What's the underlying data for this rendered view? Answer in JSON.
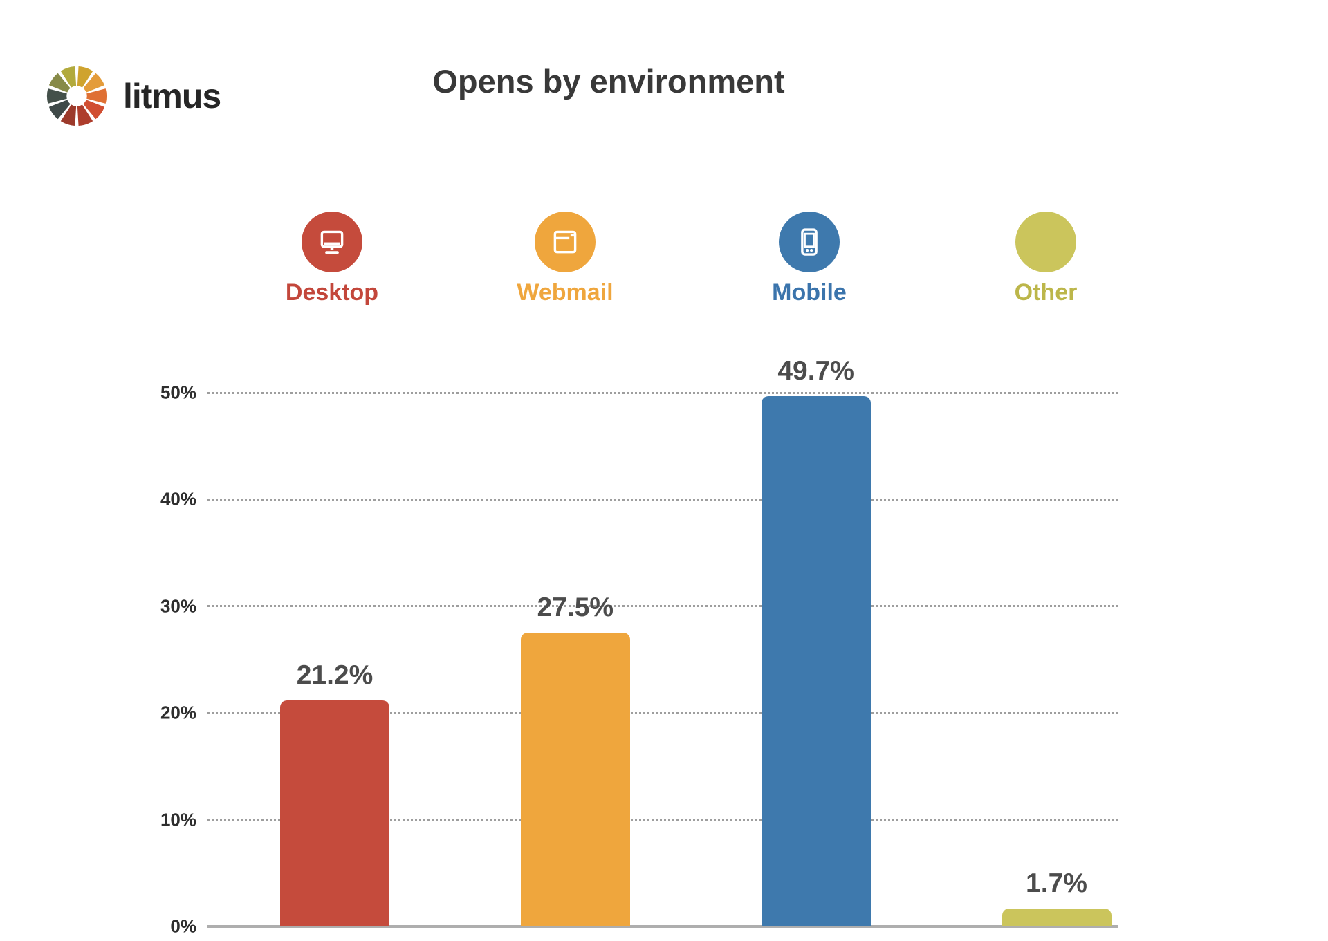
{
  "logo": {
    "brand": "litmus",
    "text_color": "#262626",
    "wheel_colors": [
      "#cfa32e",
      "#e49c3a",
      "#df7034",
      "#d14e31",
      "#ae3d2c",
      "#9c3a2b",
      "#3f4a49",
      "#44504a",
      "#878a48",
      "#b2aa3d"
    ]
  },
  "chart_data": {
    "type": "bar",
    "title": "Opens by environment",
    "categories": [
      "Desktop",
      "Webmail",
      "Mobile",
      "Other"
    ],
    "values": [
      21.2,
      27.5,
      49.7,
      1.7
    ],
    "value_labels": [
      "21.2%",
      "27.5%",
      "49.7%",
      "1.7%"
    ],
    "colors": [
      "#c54b3c",
      "#efa63d",
      "#3e79ad",
      "#cbc55c"
    ],
    "label_colors": [
      "#c3473b",
      "#efa63d",
      "#3b74ac",
      "#bcb64a"
    ],
    "icons": [
      "desktop-icon",
      "webmail-icon",
      "mobile-icon",
      "other-icon"
    ],
    "xlabel": "",
    "ylabel": "",
    "ylim": [
      0,
      50
    ],
    "yticks": [
      0,
      10,
      20,
      30,
      40,
      50
    ],
    "ytick_labels": [
      "0%",
      "10%",
      "20%",
      "30%",
      "40%",
      "50%"
    ],
    "grid": "horizontal-dotted",
    "legend_position": "top",
    "title_color": "#393939",
    "grid_color": "#9e9e9e",
    "baseline_color": "#aeaeae",
    "tick_label_color": "#2e2e2e",
    "value_label_color": "#4c4c4c"
  }
}
